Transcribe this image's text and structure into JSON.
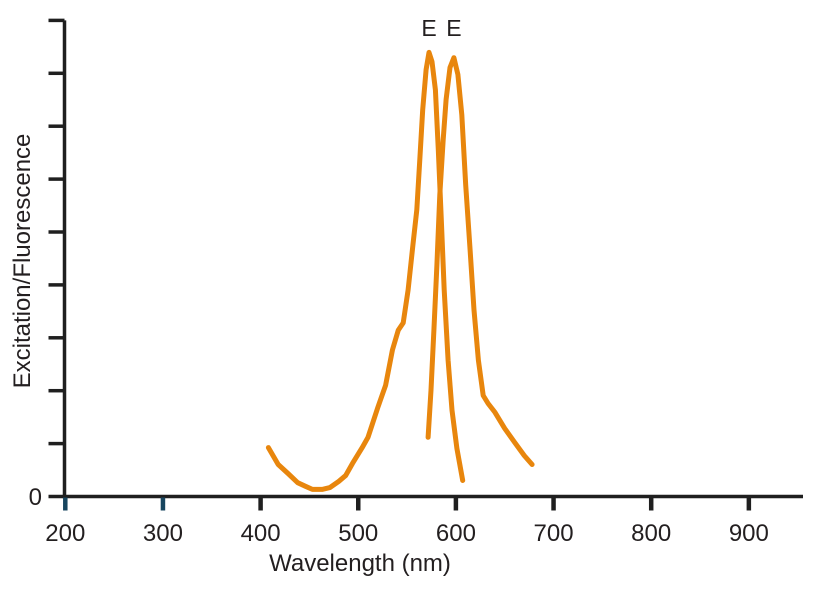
{
  "chart": {
    "x_axis": {
      "title": "Wavelength (nm)",
      "tick_values": [
        200,
        300,
        400,
        500,
        600,
        700,
        800,
        900
      ],
      "tick_labels": [
        "200",
        "300",
        "400",
        "500",
        "600",
        "700",
        "800",
        "900"
      ],
      "highlighted_tick_values": [
        200,
        300
      ]
    },
    "y_axis": {
      "title": "Excitation/Fluorescence",
      "zero_label": "0",
      "unlabeled_tick_count": 9
    }
  },
  "colors": {
    "curve": "#e8860d",
    "axis": "#1f1f1f",
    "text": "#231f20",
    "highlight_tick": "#17455f"
  },
  "chart_data": {
    "type": "line",
    "title": "",
    "xlabel": "Wavelength (nm)",
    "ylabel": "Excitation/Fluorescence",
    "x_unit": "nm",
    "xlim": [
      200,
      955
    ],
    "ylim": [
      0,
      1
    ],
    "grid": false,
    "legend": null,
    "x_ticks": [
      200,
      300,
      400,
      500,
      600,
      700,
      800,
      900
    ],
    "series": [
      {
        "name": "Excitation",
        "peak_label": "E",
        "peak_nm": 572.5,
        "color": "#e8860d",
        "points": [
          [
            408,
            0.11
          ],
          [
            418,
            0.072
          ],
          [
            428,
            0.052
          ],
          [
            438,
            0.031
          ],
          [
            446,
            0.023
          ],
          [
            453,
            0.016
          ],
          [
            463,
            0.016
          ],
          [
            471,
            0.02
          ],
          [
            480,
            0.034
          ],
          [
            487,
            0.047
          ],
          [
            494,
            0.074
          ],
          [
            504,
            0.11
          ],
          [
            510,
            0.133
          ],
          [
            520,
            0.2
          ],
          [
            528,
            0.25
          ],
          [
            535,
            0.329
          ],
          [
            541,
            0.374
          ],
          [
            546,
            0.39
          ],
          [
            551,
            0.464
          ],
          [
            556,
            0.565
          ],
          [
            560,
            0.644
          ],
          [
            563,
            0.757
          ],
          [
            566,
            0.869
          ],
          [
            569.5,
            0.959
          ],
          [
            572.5,
            0.998
          ],
          [
            575.5,
            0.977
          ],
          [
            579,
            0.914
          ],
          [
            582,
            0.779
          ],
          [
            585,
            0.622
          ],
          [
            588,
            0.464
          ],
          [
            592,
            0.306
          ],
          [
            596,
            0.194
          ],
          [
            601,
            0.108
          ],
          [
            607,
            0.036
          ]
        ]
      },
      {
        "name": "Fluorescence",
        "peak_label": "E",
        "peak_nm": 598,
        "color": "#e8860d",
        "points": [
          [
            571.5,
            0.133
          ],
          [
            574.5,
            0.239
          ],
          [
            577.5,
            0.374
          ],
          [
            580.5,
            0.52
          ],
          [
            583.5,
            0.678
          ],
          [
            587,
            0.802
          ],
          [
            590,
            0.892
          ],
          [
            594,
            0.964
          ],
          [
            598,
            0.986
          ],
          [
            602,
            0.948
          ],
          [
            606,
            0.858
          ],
          [
            610,
            0.7
          ],
          [
            614.5,
            0.554
          ],
          [
            618.5,
            0.419
          ],
          [
            623,
            0.306
          ],
          [
            628,
            0.227
          ],
          [
            633,
            0.209
          ],
          [
            640,
            0.189
          ],
          [
            650,
            0.153
          ],
          [
            660,
            0.122
          ],
          [
            670,
            0.092
          ],
          [
            678,
            0.072
          ]
        ]
      }
    ]
  }
}
